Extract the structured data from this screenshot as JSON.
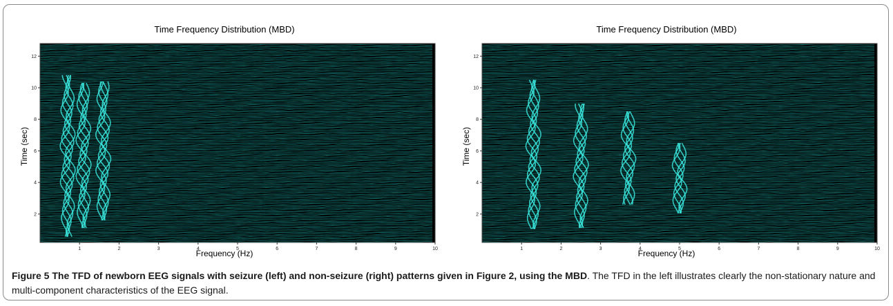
{
  "chart_data": [
    {
      "type": "heatmap",
      "title": "Time Frequency Distribution (MBD)",
      "xlabel": "Frequency (Hz)",
      "ylabel": "Time (sec)",
      "x_ticks": [
        1,
        2,
        3,
        4,
        5,
        6,
        7,
        8,
        9,
        10
      ],
      "y_ticks": [
        2,
        4,
        6,
        8,
        10,
        12
      ],
      "xlim": [
        0,
        10
      ],
      "ylim": [
        0.2,
        12.8
      ],
      "colors": {
        "background": "#000000",
        "trace": "#1fbfb8",
        "highlight": "#39e6dd"
      },
      "components": [
        {
          "freq_hz": 0.7,
          "time_start": 0.5,
          "time_end": 10.8
        },
        {
          "freq_hz": 1.1,
          "time_start": 1.0,
          "time_end": 10.3
        },
        {
          "freq_hz": 1.6,
          "time_start": 1.5,
          "time_end": 10.4
        }
      ]
    },
    {
      "type": "heatmap",
      "title": "Time Frequency Distribution (MBD)",
      "xlabel": "Frequency (Hz)",
      "ylabel": "Time (sec)",
      "x_ticks": [
        1,
        2,
        3,
        4,
        5,
        6,
        7,
        8,
        9,
        10
      ],
      "y_ticks": [
        2,
        4,
        6,
        8,
        10,
        12
      ],
      "xlim": [
        0,
        10
      ],
      "ylim": [
        0.2,
        12.8
      ],
      "colors": {
        "background": "#000000",
        "trace": "#1fbfb8",
        "highlight": "#39e6dd"
      },
      "components": [
        {
          "freq_hz": 1.3,
          "time_start": 1.0,
          "time_end": 10.5
        },
        {
          "freq_hz": 2.5,
          "time_start": 1.0,
          "time_end": 9.0
        },
        {
          "freq_hz": 3.7,
          "time_start": 2.5,
          "time_end": 8.5
        },
        {
          "freq_hz": 5.0,
          "time_start": 2.0,
          "time_end": 6.5
        }
      ]
    }
  ],
  "caption": {
    "bold": "Figure 5 The TFD of newborn EEG signals with seizure (left) and non-seizure (right) patterns given in Figure 2, using the MBD",
    "text": ". The TFD in the left illustrates clearly the non-stationary nature and multi-component characteristics of the EEG signal."
  }
}
